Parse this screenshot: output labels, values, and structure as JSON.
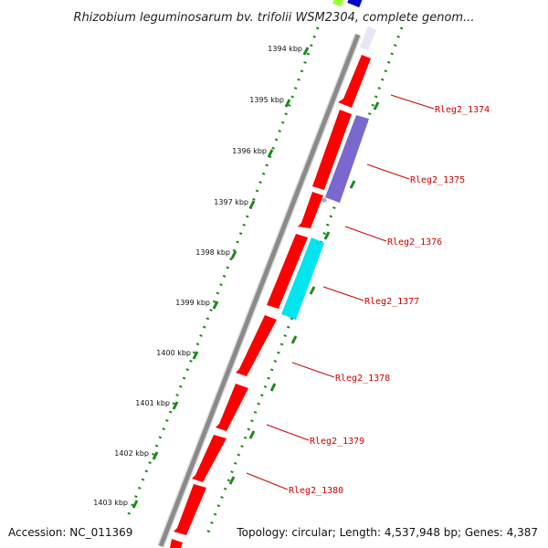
{
  "title": "Rhizobium leguminosarum bv. trifolii WSM2304, complete genom...",
  "accession": "Accession: NC_011369",
  "topology": "Topology: circular; Length: 4,537,948 bp; Genes: 4,387",
  "ticks": [
    {
      "label": "1394 kbp",
      "value": 1394
    },
    {
      "label": "1395 kbp",
      "value": 1395
    },
    {
      "label": "1396 kbp",
      "value": 1396
    },
    {
      "label": "1397 kbp",
      "value": 1397
    },
    {
      "label": "1398 kbp",
      "value": 1398
    },
    {
      "label": "1399 kbp",
      "value": 1399
    },
    {
      "label": "1400 kbp",
      "value": 1400
    },
    {
      "label": "1401 kbp",
      "value": 1401
    },
    {
      "label": "1402 kbp",
      "value": 1402
    },
    {
      "label": "1403 kbp",
      "value": 1403
    }
  ],
  "gene_labels": [
    {
      "label": "Rleg2_1374"
    },
    {
      "label": "Rleg2_1375"
    },
    {
      "label": "Rleg2_1376"
    },
    {
      "label": "Rleg2_1377"
    },
    {
      "label": "Rleg2_1378"
    },
    {
      "label": "Rleg2_1379"
    },
    {
      "label": "Rleg2_1380"
    }
  ],
  "colors": {
    "cds": "#ff0000",
    "feature_blue": "#7b68cf",
    "feature_cyan": "#00e5ee",
    "top_green": "#99ff33",
    "top_blue": "#0000cc",
    "backbone": "#888888",
    "dots": "#1a8a1a",
    "label": "#cc0000"
  }
}
